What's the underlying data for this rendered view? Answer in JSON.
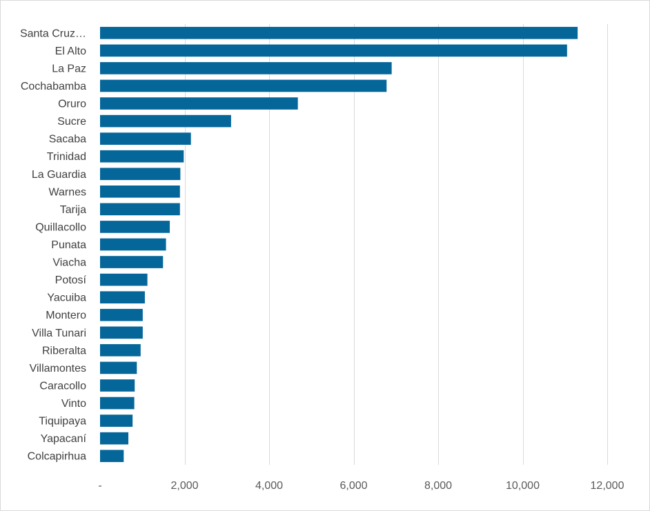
{
  "chart_data": {
    "type": "bar",
    "orientation": "horizontal",
    "categories": [
      "Santa Cruz…",
      "El Alto",
      "La Paz",
      "Cochabamba",
      "Oruro",
      "Sucre",
      "Sacaba",
      "Trinidad",
      "La Guardia",
      "Warnes",
      "Tarija",
      "Quillacollo",
      "Punata",
      "Viacha",
      "Potosí",
      "Yacuiba",
      "Montero",
      "Villa Tunari",
      "Riberalta",
      "Villamontes",
      "Caracollo",
      "Vinto",
      "Tiquipaya",
      "Yapacaní",
      "Colcapirhua"
    ],
    "values": [
      11300,
      11050,
      6900,
      6780,
      4680,
      3100,
      2150,
      1980,
      1900,
      1890,
      1890,
      1650,
      1560,
      1490,
      1120,
      1060,
      1010,
      1010,
      960,
      870,
      820,
      810,
      770,
      670,
      560
    ],
    "xlim": [
      0,
      12000
    ],
    "xticks": [
      0,
      2000,
      4000,
      6000,
      8000,
      10000,
      12000
    ],
    "xtick_labels": [
      "-",
      "2,000",
      "4,000",
      "6,000",
      "8,000",
      "10,000",
      "12,000"
    ],
    "title": "",
    "xlabel": "",
    "ylabel": "",
    "grid": "vertical",
    "legend": "none",
    "bar_color": "#05669a",
    "grid_color": "#d9d9d9"
  }
}
